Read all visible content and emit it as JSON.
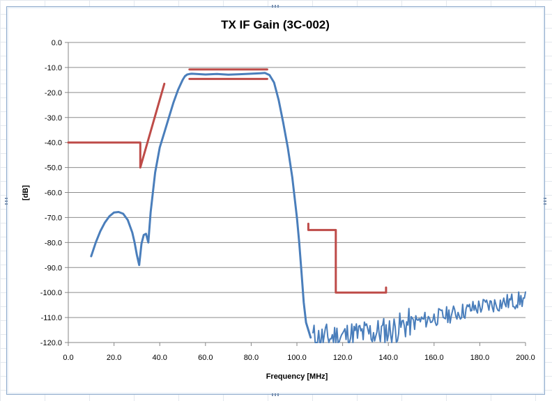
{
  "chart_data": {
    "type": "line",
    "title": "TX IF Gain  (3C-002)",
    "xlabel": "Frequency [MHz]",
    "ylabel": "[dB]",
    "xlim": [
      0,
      200
    ],
    "ylim": [
      -120,
      0
    ],
    "x_ticks": [
      "0.0",
      "20.0",
      "40.0",
      "60.0",
      "80.0",
      "100.0",
      "120.0",
      "140.0",
      "160.0",
      "180.0",
      "200.0"
    ],
    "y_ticks": [
      "0.0",
      "-10.0",
      "-20.0",
      "-30.0",
      "-40.0",
      "-50.0",
      "-60.0",
      "-70.0",
      "-80.0",
      "-90.0",
      "-100.0",
      "-110.0",
      "-120.0"
    ],
    "grid": "horizontal major gridlines",
    "legend": "none",
    "series": [
      {
        "color": "#4a7ebb",
        "x": [
          10,
          12,
          14,
          16,
          18,
          20,
          22,
          24,
          26,
          28,
          29,
          30,
          31,
          32,
          33,
          34,
          35,
          36,
          38,
          40,
          42,
          44,
          46,
          48,
          50,
          51,
          52,
          53,
          54,
          56,
          60,
          65,
          70,
          75,
          80,
          84,
          86,
          88,
          90,
          92,
          94,
          96,
          98,
          100,
          101,
          102,
          103,
          104,
          105,
          106
        ],
        "y": [
          -85.5,
          -80,
          -75.5,
          -72,
          -69.5,
          -68,
          -67.8,
          -68.5,
          -71,
          -76,
          -80,
          -85,
          -89,
          -80.5,
          -77,
          -76.5,
          -80,
          -68,
          -52,
          -42,
          -36,
          -30,
          -24,
          -19,
          -15,
          -13.5,
          -12.8,
          -12.6,
          -12.5,
          -12.6,
          -12.8,
          -12.6,
          -12.9,
          -12.7,
          -12.5,
          -12.3,
          -12.2,
          -13,
          -16,
          -23,
          -32,
          -42,
          -54,
          -70,
          -80,
          -92,
          -104,
          -112,
          -115,
          -118
        ]
      },
      {
        "color": "#4a7ebb",
        "style": "noisy floor",
        "x": [
          107,
          110,
          120,
          130,
          140,
          145,
          150,
          160,
          170,
          180,
          190,
          200
        ],
        "y": [
          -118.5,
          -119,
          -118,
          -117,
          -116,
          -114.5,
          -112.5,
          -110.5,
          -108.5,
          -106,
          -104.5,
          -103
        ]
      },
      {
        "color": "#be4b48",
        "style": "spec mask (lower stopband)",
        "x": [
          0,
          31.5,
          31.5,
          42
        ],
        "y": [
          -40,
          -40,
          -50,
          -16.5
        ]
      },
      {
        "color": "#be4b48",
        "style": "spec mask (passband upper)",
        "x": [
          53,
          87
        ],
        "y": [
          -10.8,
          -10.8
        ]
      },
      {
        "color": "#be4b48",
        "style": "spec mask (passband lower)",
        "x": [
          53,
          87
        ],
        "y": [
          -14.6,
          -14.6
        ]
      },
      {
        "color": "#be4b48",
        "style": "spec mask (upper stopband)",
        "x": [
          105,
          105,
          117,
          117,
          139,
          139
        ],
        "y": [
          -72.5,
          -75,
          -75,
          -100,
          -100,
          -98
        ]
      }
    ]
  }
}
